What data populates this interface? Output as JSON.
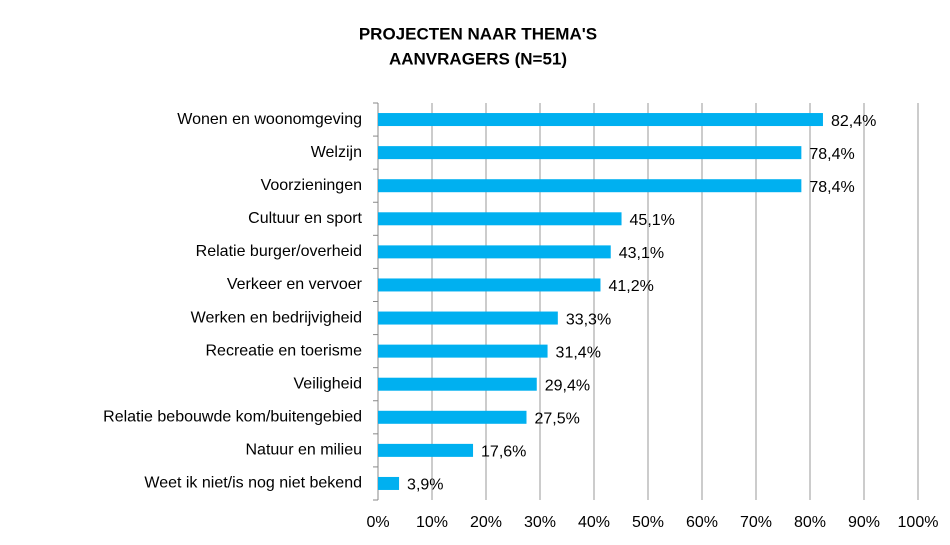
{
  "chart_data": {
    "type": "bar",
    "orientation": "horizontal",
    "title": "PROJECTEN NAAR THEMA'S",
    "subtitle": "AANVRAGERS (N=51)",
    "categories": [
      "Wonen en woonomgeving",
      "Welzijn",
      "Voorzieningen",
      "Cultuur en sport",
      "Relatie burger/overheid",
      "Verkeer en vervoer",
      "Werken en bedrijvigheid",
      "Recreatie en toerisme",
      "Veiligheid",
      "Relatie bebouwde kom/buitengebied",
      "Natuur en milieu",
      "Weet ik niet/is nog niet bekend"
    ],
    "values": [
      82.4,
      78.4,
      78.4,
      45.1,
      43.1,
      41.2,
      33.3,
      31.4,
      29.4,
      27.5,
      17.6,
      3.9
    ],
    "value_labels": [
      "82,4%",
      "78,4%",
      "78,4%",
      "45,1%",
      "43,1%",
      "41,2%",
      "33,3%",
      "31,4%",
      "29,4%",
      "27,5%",
      "17,6%",
      "3,9%"
    ],
    "color": "#00b0f0",
    "xlim": [
      0,
      100
    ],
    "xticks": [
      {
        "value": 0,
        "label": "0%"
      },
      {
        "value": 10,
        "label": "10%"
      },
      {
        "value": 20,
        "label": "20%"
      },
      {
        "value": 30,
        "label": "30%"
      },
      {
        "value": 40,
        "label": "40%"
      },
      {
        "value": 50,
        "label": "50%"
      },
      {
        "value": 60,
        "label": "60%"
      },
      {
        "value": 70,
        "label": "70%"
      },
      {
        "value": 80,
        "label": "80%"
      },
      {
        "value": 90,
        "label": "90%"
      },
      {
        "value": 100,
        "label": "100%"
      }
    ],
    "grid": true
  }
}
